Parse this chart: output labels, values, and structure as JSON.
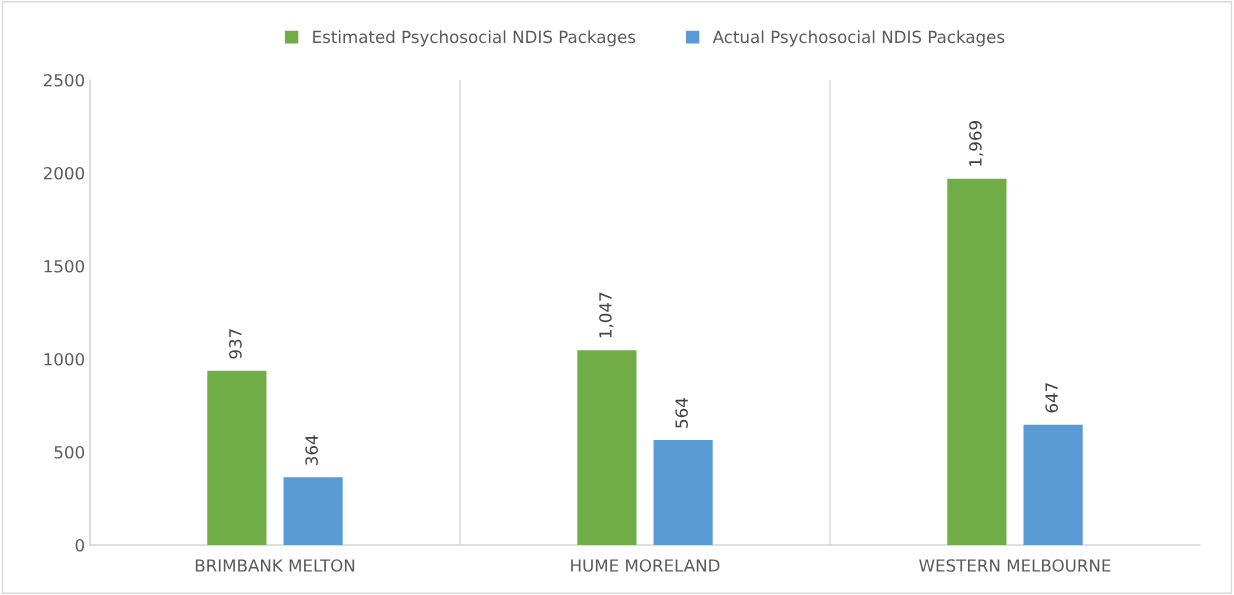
{
  "chart_data": {
    "type": "bar",
    "categories": [
      "BRIMBANK MELTON",
      "HUME MORELAND",
      "WESTERN MELBOURNE"
    ],
    "series": [
      {
        "name": "Estimated Psychosocial NDIS Packages",
        "color": "#70ad47",
        "values": [
          937,
          1047,
          1969
        ],
        "value_labels": [
          "937",
          "1,047",
          "1,969"
        ]
      },
      {
        "name": "Actual Psychosocial NDIS Packages",
        "color": "#5b9bd5",
        "values": [
          364,
          564,
          647
        ],
        "value_labels": [
          "364",
          "564",
          "647"
        ]
      }
    ],
    "ylim": [
      0,
      2500
    ],
    "yticks": [
      0,
      500,
      1000,
      1500,
      2000,
      2500
    ],
    "grid": "x",
    "legend": "top"
  }
}
